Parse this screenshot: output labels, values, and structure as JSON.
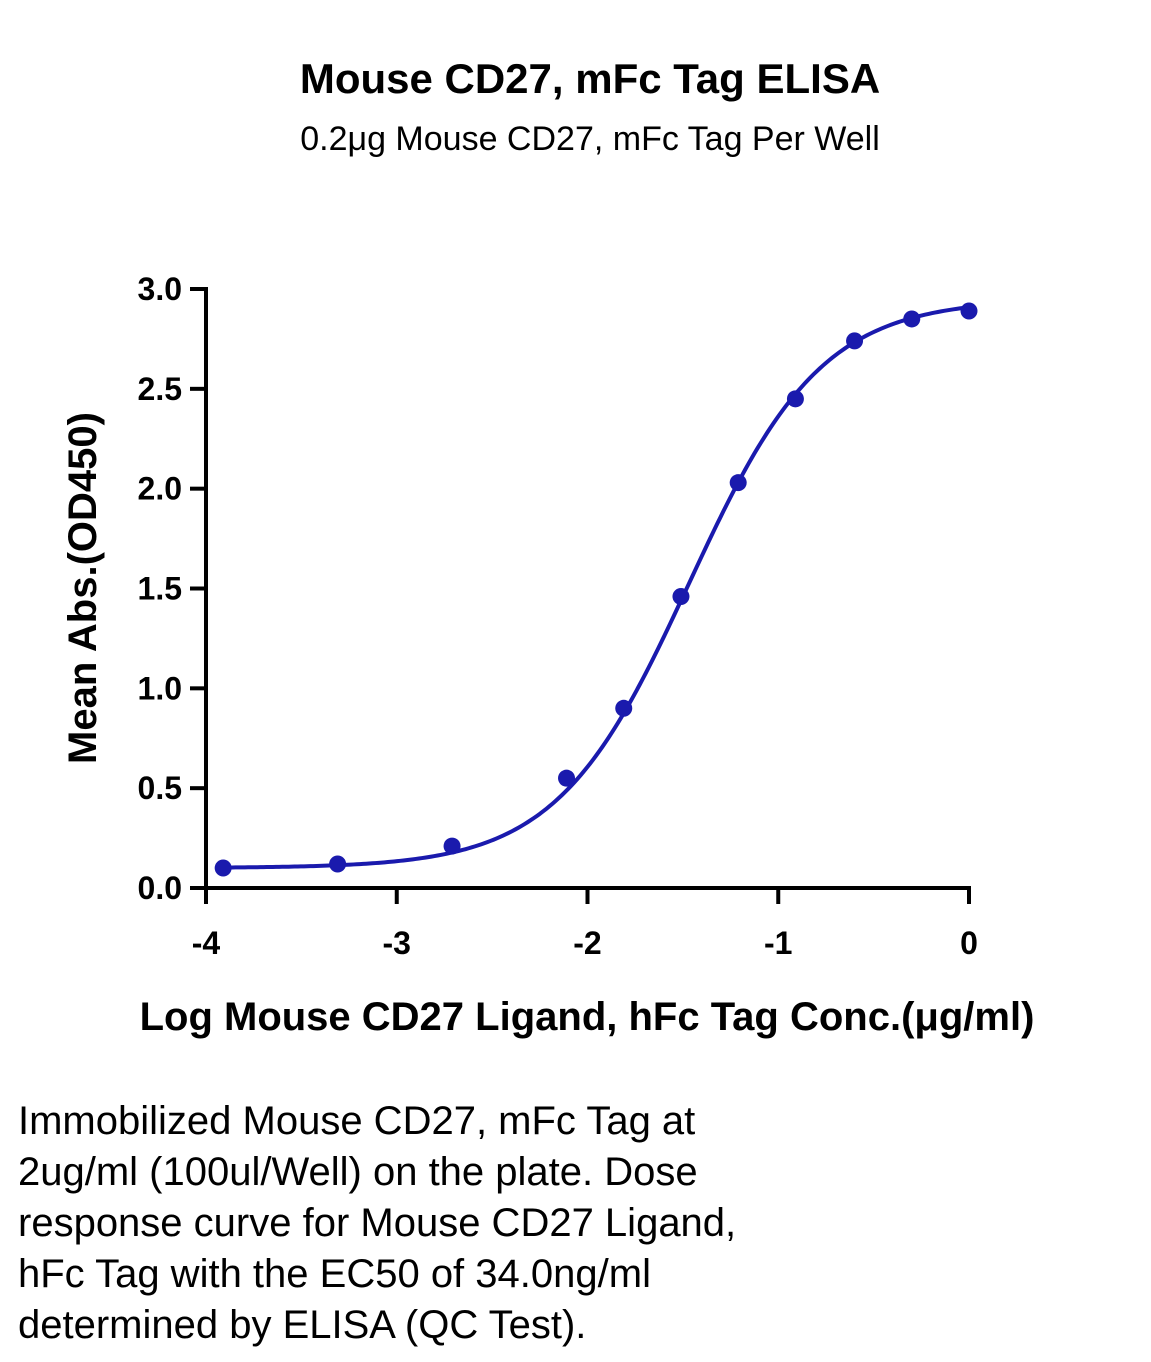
{
  "chart_data": {
    "type": "scatter",
    "title": "Mouse CD27, mFc Tag ELISA",
    "subtitle": "0.2μg Mouse CD27, mFc Tag Per Well",
    "xlabel": "Log Mouse CD27 Ligand, hFc Tag Conc.(μg/ml)",
    "ylabel": "Mean Abs.(OD450)",
    "xlim": [
      -4,
      0
    ],
    "ylim": [
      0,
      3.0
    ],
    "x_ticks": [
      -4,
      -3,
      -2,
      -1,
      0
    ],
    "x_tick_labels": [
      "-4",
      "-3",
      "-2",
      "-1",
      "0"
    ],
    "y_ticks": [
      0,
      0.5,
      1.0,
      1.5,
      2.0,
      2.5,
      3.0
    ],
    "y_tick_labels": [
      "0.0",
      "0.5",
      "1.0",
      "1.5",
      "2.0",
      "2.5",
      "3.0"
    ],
    "grid": false,
    "legend": "none",
    "series": [
      {
        "color": "#1a1aad",
        "x": [
          -3.91,
          -3.31,
          -2.71,
          -2.11,
          -1.81,
          -1.51,
          -1.21,
          -0.91,
          -0.6,
          -0.3,
          0.0
        ],
        "y": [
          0.1,
          0.12,
          0.21,
          0.55,
          0.9,
          1.46,
          2.03,
          2.45,
          2.74,
          2.85,
          2.89
        ],
        "fit": {
          "model": "4PL",
          "bottom": 0.1,
          "top": 2.95,
          "logEC50": -1.468,
          "hill": 1.25
        }
      }
    ]
  },
  "caption": {
    "lines": [
      "Immobilized Mouse CD27, mFc Tag at",
      "2ug/ml (100ul/Well) on the plate. Dose",
      "response curve for Mouse CD27 Ligand,",
      "hFc Tag with the EC50 of 34.0ng/ml",
      "determined by ELISA (QC Test)."
    ]
  }
}
